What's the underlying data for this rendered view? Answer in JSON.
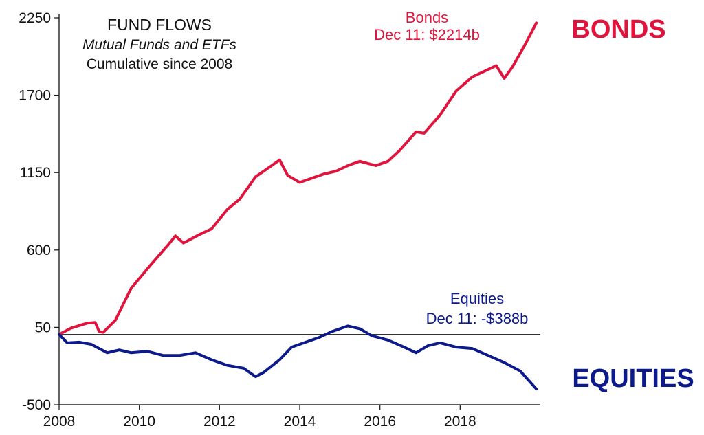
{
  "chart_data": {
    "type": "line",
    "title": "FUND FLOWS",
    "subtitle": "Mutual Funds and ETFs",
    "subtitle2": "Cumulative since 2008",
    "xlabel": "",
    "ylabel": "",
    "xlim": [
      2008,
      2020
    ],
    "ylim": [
      -500,
      2250
    ],
    "x_ticks": [
      2008,
      2010,
      2012,
      2014,
      2016,
      2018
    ],
    "y_ticks": [
      -500,
      50,
      600,
      1150,
      1700,
      2250
    ],
    "x_tick_labels": [
      "2008",
      "2010",
      "2012",
      "2014",
      "2016",
      "2018"
    ],
    "y_tick_labels": [
      "-500",
      "50",
      "600",
      "1150",
      "1700",
      "2250"
    ],
    "grid": false,
    "reference_line_y": 0,
    "series": [
      {
        "name": "Bonds",
        "color": "#e0143c",
        "side_label": "BONDS",
        "annotation_line1": "Bonds",
        "annotation_line2": "Dec 11: $2214b",
        "points": [
          [
            2008.0,
            0
          ],
          [
            2008.3,
            45
          ],
          [
            2008.7,
            80
          ],
          [
            2008.9,
            85
          ],
          [
            2009.0,
            20
          ],
          [
            2009.1,
            15
          ],
          [
            2009.4,
            100
          ],
          [
            2009.8,
            330
          ],
          [
            2010.3,
            500
          ],
          [
            2010.7,
            630
          ],
          [
            2010.9,
            700
          ],
          [
            2011.1,
            650
          ],
          [
            2011.5,
            710
          ],
          [
            2011.8,
            750
          ],
          [
            2012.2,
            890
          ],
          [
            2012.5,
            960
          ],
          [
            2012.9,
            1120
          ],
          [
            2013.3,
            1200
          ],
          [
            2013.5,
            1240
          ],
          [
            2013.7,
            1130
          ],
          [
            2014.0,
            1080
          ],
          [
            2014.3,
            1110
          ],
          [
            2014.6,
            1140
          ],
          [
            2014.9,
            1160
          ],
          [
            2015.2,
            1200
          ],
          [
            2015.5,
            1230
          ],
          [
            2015.9,
            1200
          ],
          [
            2016.2,
            1230
          ],
          [
            2016.5,
            1310
          ],
          [
            2016.9,
            1440
          ],
          [
            2017.1,
            1430
          ],
          [
            2017.5,
            1560
          ],
          [
            2017.9,
            1730
          ],
          [
            2018.3,
            1830
          ],
          [
            2018.6,
            1870
          ],
          [
            2018.9,
            1910
          ],
          [
            2019.1,
            1820
          ],
          [
            2019.3,
            1900
          ],
          [
            2019.6,
            2050
          ],
          [
            2019.9,
            2214
          ]
        ]
      },
      {
        "name": "Equities",
        "color": "#0d1a8c",
        "side_label": "EQUITIES",
        "annotation_line1": "Equities",
        "annotation_line2": "Dec 11: -$388b",
        "points": [
          [
            2008.0,
            0
          ],
          [
            2008.2,
            -60
          ],
          [
            2008.5,
            -55
          ],
          [
            2008.8,
            -70
          ],
          [
            2009.0,
            -100
          ],
          [
            2009.2,
            -130
          ],
          [
            2009.5,
            -110
          ],
          [
            2009.8,
            -130
          ],
          [
            2010.2,
            -120
          ],
          [
            2010.6,
            -150
          ],
          [
            2011.0,
            -150
          ],
          [
            2011.4,
            -130
          ],
          [
            2011.8,
            -180
          ],
          [
            2012.2,
            -220
          ],
          [
            2012.6,
            -240
          ],
          [
            2012.9,
            -300
          ],
          [
            2013.1,
            -270
          ],
          [
            2013.5,
            -180
          ],
          [
            2013.8,
            -90
          ],
          [
            2014.2,
            -50
          ],
          [
            2014.5,
            -20
          ],
          [
            2014.8,
            20
          ],
          [
            2015.2,
            60
          ],
          [
            2015.5,
            40
          ],
          [
            2015.8,
            -10
          ],
          [
            2016.2,
            -40
          ],
          [
            2016.6,
            -90
          ],
          [
            2016.9,
            -130
          ],
          [
            2017.2,
            -80
          ],
          [
            2017.5,
            -60
          ],
          [
            2017.9,
            -90
          ],
          [
            2018.3,
            -100
          ],
          [
            2018.7,
            -150
          ],
          [
            2019.1,
            -200
          ],
          [
            2019.5,
            -260
          ],
          [
            2019.9,
            -388
          ]
        ]
      }
    ]
  }
}
